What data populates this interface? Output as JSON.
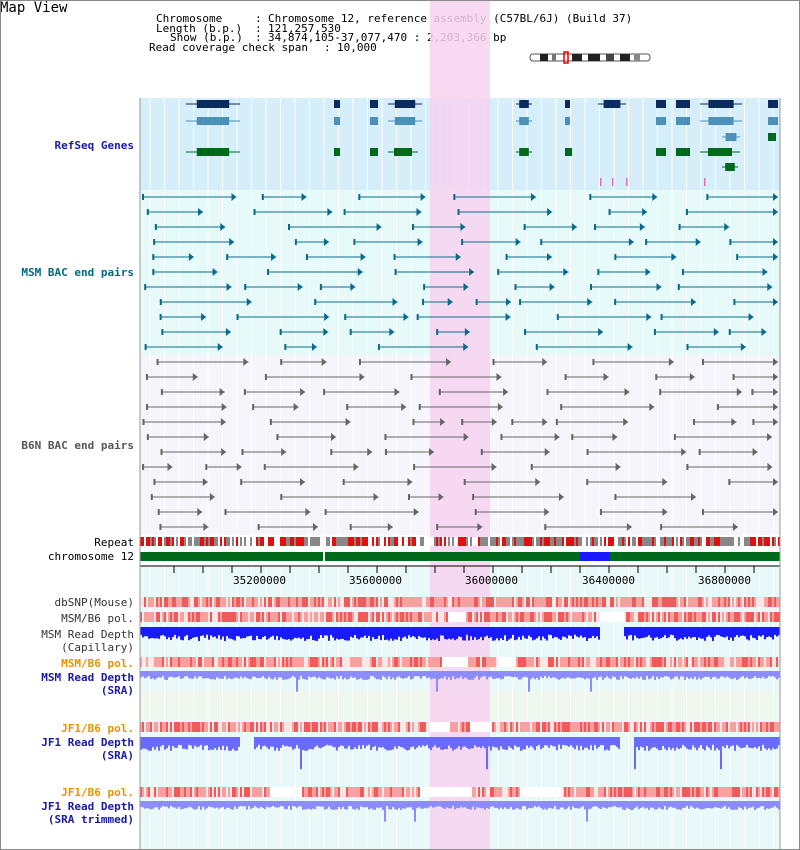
{
  "title": "Map View",
  "header": {
    "chromosome_label": "Chromosome",
    "chromosome_value": "Chromosome 12, reference assembly (C57BL/6J) (Build 37)",
    "length_label": "Length (b.p.)",
    "length_value": "121,257,530",
    "show_label": "Show (b.p.)",
    "show_value": "34,874,105-37,077,470 : 2,203,366 bp",
    "span_label": "Read coverage check span",
    "span_value": "10,000"
  },
  "tracks": {
    "refseq": "RefSeq Genes",
    "msm_bac": "MSM BAC end pairs",
    "b6n_bac": "B6N BAC end pairs",
    "repeat": "Repeat",
    "chromosome": "chromosome 12",
    "dbsnp": "dbSNP(Mouse)",
    "msm_b6_pol": "MSM/B6 pol.",
    "msm_depth_cap_1": "MSM Read Depth",
    "msm_depth_cap_2": "(Capillary)",
    "msm_b6_pol_sra": "MSM/B6 pol.",
    "msm_depth_sra_1": "MSM Read Depth",
    "msm_depth_sra_2": "(SRA)",
    "jf1_b6_pol": "JF1/B6 pol.",
    "jf1_depth_sra_1": "JF1 Read Depth",
    "jf1_depth_sra_2": "(SRA)",
    "jf1_b6_pol_trim": "JF1/B6 pol.",
    "jf1_depth_trim_1": "JF1 Read Depth",
    "jf1_depth_trim_2": "(SRA trimmed)"
  },
  "axis": {
    "ticks": [
      "35200000",
      "35600000",
      "36000000",
      "36400000",
      "36800000"
    ]
  },
  "colors": {
    "refseq_bg": "#d6eefa",
    "msm_bg": "#e6fafa",
    "b6n_bg": "#f5f5fb",
    "highlight": "#f7d2f0",
    "green": "#006a1a",
    "navy": "#0b2b60",
    "teal": "#0a6a8c",
    "depth_blue": "#1a1aff",
    "depth_light": "#8c8cff",
    "pol_orange": "#e69500",
    "label_blue": "#1a1aa0",
    "label_teal": "#006a80"
  }
}
